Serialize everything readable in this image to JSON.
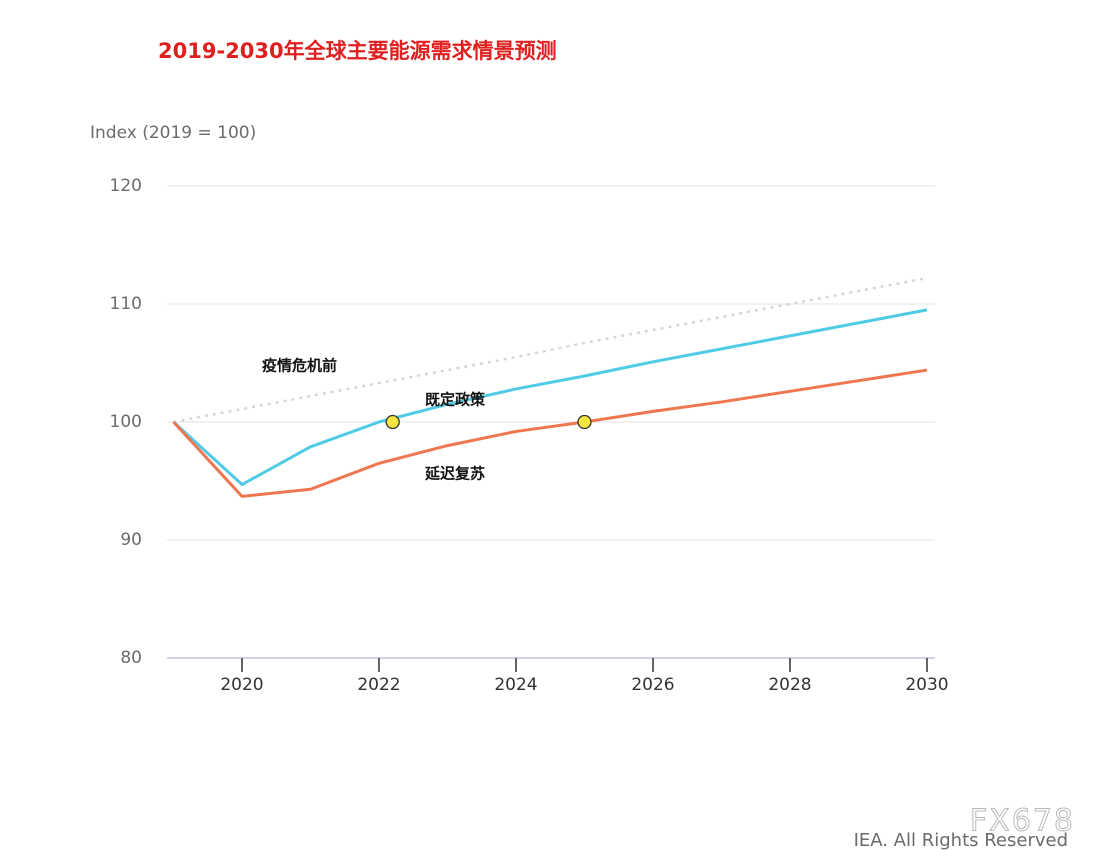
{
  "chart_data": {
    "type": "line",
    "title": "2019-2030年全球主要能源需求情景预测",
    "y_label": "Index (2019 = 100)",
    "x": [
      2019,
      2020,
      2021,
      2022,
      2023,
      2024,
      2025,
      2026,
      2027,
      2028,
      2029,
      2030
    ],
    "series": [
      {
        "name": "疫情危机前",
        "color": "#d4d6d8",
        "dashed": true,
        "values": [
          100,
          101.1,
          102.2,
          103.3,
          104.4,
          105.5,
          106.7,
          107.8,
          108.9,
          110.0,
          111.1,
          112.2
        ]
      },
      {
        "name": "既定政策",
        "color": "#4fcbe6",
        "values": [
          100,
          94.7,
          97.9,
          100.0,
          101.5,
          102.8,
          103.9,
          105.1,
          106.2,
          107.3,
          108.4,
          109.5
        ]
      },
      {
        "name": "延迟复苏",
        "color": "#f07650",
        "values": [
          100,
          93.7,
          94.3,
          96.5,
          98.0,
          99.2,
          100.0,
          100.9,
          101.7,
          102.6,
          103.5,
          104.4
        ]
      }
    ],
    "markers": {
      "color": "#f5e642",
      "x": [
        2022.2,
        2025
      ],
      "values": [
        100,
        100
      ]
    },
    "xlim": [
      2019,
      2030
    ],
    "xticks": [
      2020,
      2022,
      2024,
      2026,
      2028,
      2030
    ],
    "ylim": [
      80,
      120
    ],
    "yticks": [
      80,
      90,
      100,
      110,
      120
    ],
    "grid": true,
    "source": "IEA. All Rights Reserved",
    "watermark": "FX678"
  }
}
